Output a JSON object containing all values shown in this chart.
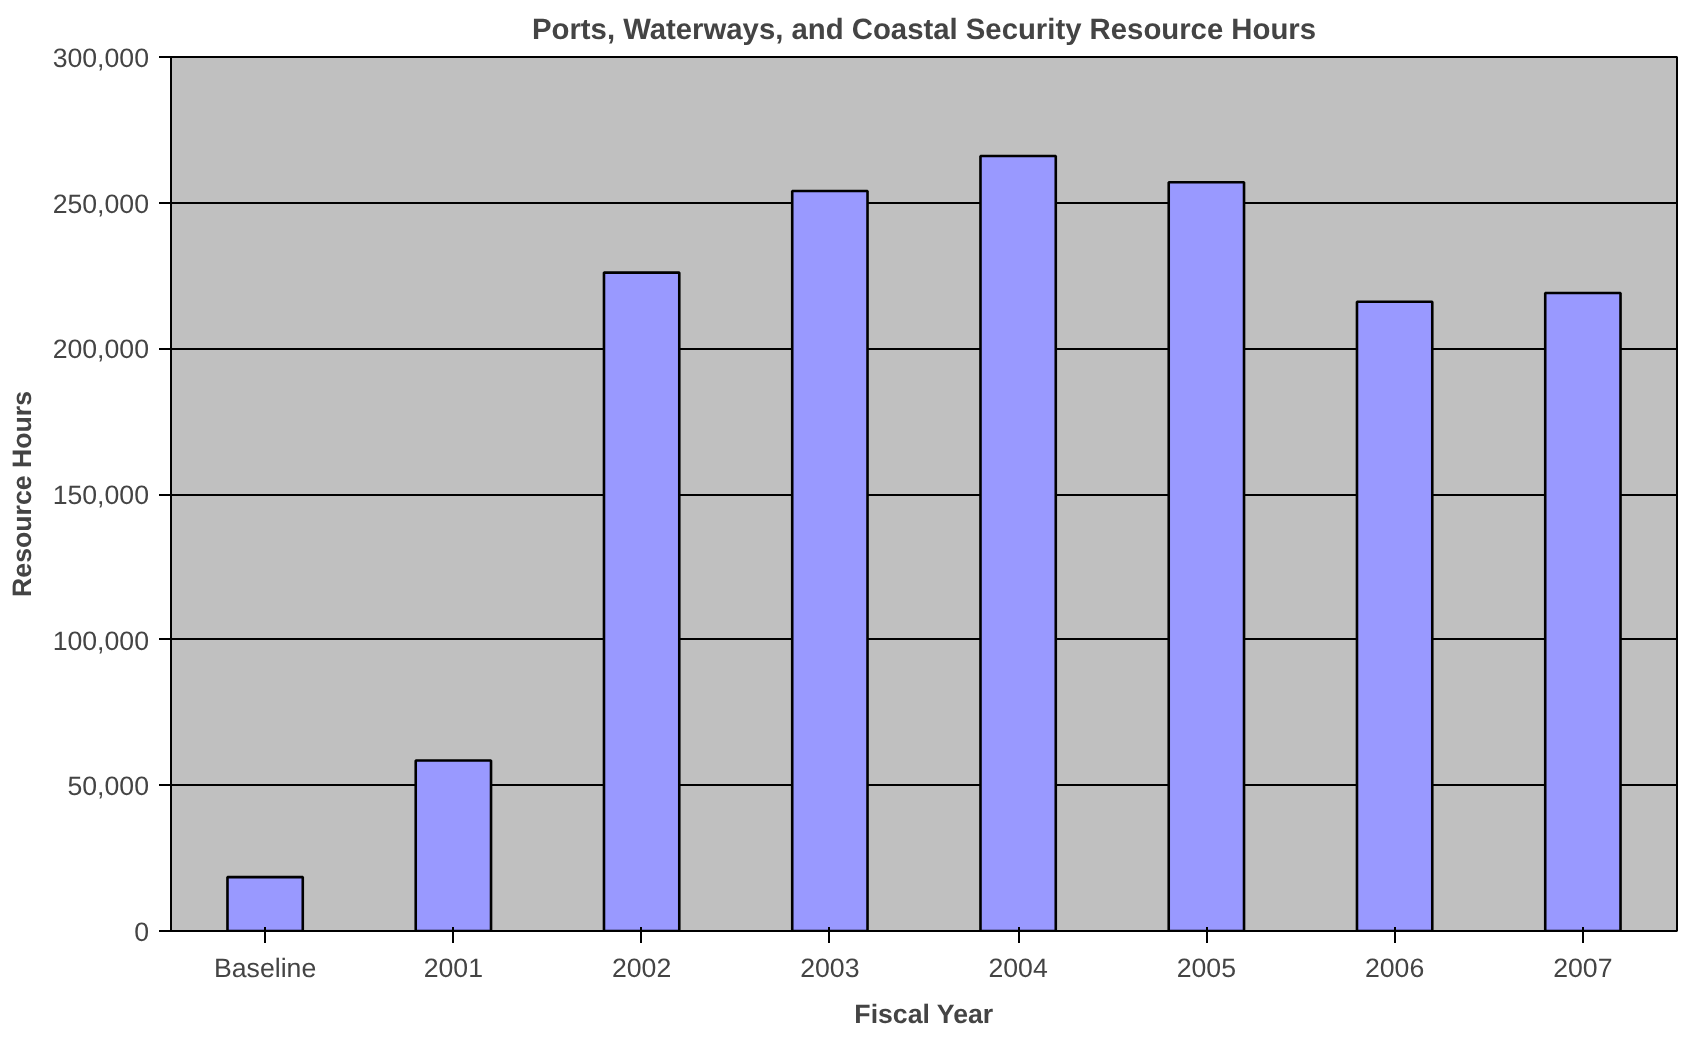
{
  "chart_data": {
    "type": "bar",
    "title": "Ports, Waterways, and Coastal Security Resource Hours",
    "xlabel": "Fiscal Year",
    "ylabel": "Resource Hours",
    "categories": [
      "Baseline",
      "2001",
      "2002",
      "2003",
      "2004",
      "2005",
      "2006",
      "2007"
    ],
    "values": [
      18500,
      58500,
      226000,
      254000,
      266000,
      257000,
      216000,
      219000
    ],
    "color": "#9999ff",
    "ylim": [
      0,
      300000
    ],
    "yticks": [
      {
        "value": 0,
        "label": "0"
      },
      {
        "value": 50000,
        "label": "50,000"
      },
      {
        "value": 100000,
        "label": "100,000"
      },
      {
        "value": 150000,
        "label": "150,000"
      },
      {
        "value": 200000,
        "label": "200,000"
      },
      {
        "value": 250000,
        "label": "250,000"
      },
      {
        "value": 300000,
        "label": "300,000"
      }
    ],
    "grid": "y"
  }
}
